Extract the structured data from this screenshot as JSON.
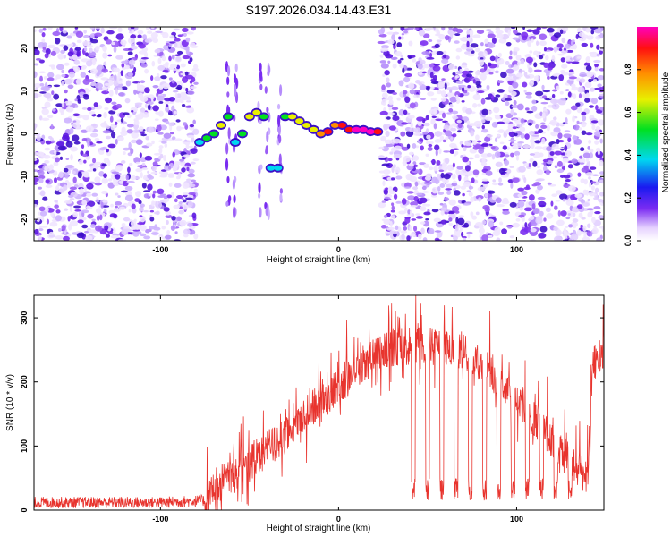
{
  "title": "S197.2026.034.14.43.E31",
  "chart_data": [
    {
      "type": "heatmap",
      "xlabel": "Height of straight line (km)",
      "ylabel": "Frequency (Hz)",
      "xlim": [
        -171,
        149
      ],
      "ylim": [
        -25,
        25
      ],
      "xticks": [
        -100,
        0,
        100
      ],
      "yticks": [
        20,
        10,
        0,
        -10,
        -20
      ],
      "colorbar": {
        "label": "Normalized spectral amplitude",
        "range": [
          0,
          1
        ],
        "ticks": [
          "0.0",
          "0.2",
          "0.4",
          "0.6",
          "0.8"
        ]
      },
      "noise_regions_km": [
        [
          -171,
          -80
        ],
        [
          24,
          149
        ]
      ],
      "empty_region_km": [
        -28,
        24
      ],
      "signal_ridge": {
        "x": [
          -78,
          -74,
          -70,
          -66,
          -62,
          -58,
          -54,
          -50,
          -46,
          -42,
          -38,
          -34,
          -30,
          -26,
          -22,
          -18,
          -14,
          -10,
          -6,
          -2,
          2,
          6,
          10,
          14,
          18,
          22
        ],
        "y": [
          -2,
          -1,
          0,
          2,
          4,
          -2,
          0,
          4,
          5,
          4,
          -8,
          -8,
          4,
          4,
          3,
          2,
          1,
          0,
          0.5,
          2,
          2,
          1,
          1,
          1,
          0.5,
          0.5
        ],
        "amplitude": [
          0.35,
          0.4,
          0.5,
          0.55,
          0.5,
          0.3,
          0.45,
          0.55,
          0.6,
          0.5,
          0.35,
          0.35,
          0.5,
          0.55,
          0.55,
          0.6,
          0.65,
          0.75,
          0.8,
          0.75,
          0.85,
          0.9,
          0.95,
          0.95,
          0.95,
          0.9
        ]
      }
    },
    {
      "type": "line",
      "xlabel": "Height of straight line (km)",
      "ylabel": "SNR (10 * v/v)",
      "xlim": [
        -171,
        149
      ],
      "ylim": [
        0,
        335
      ],
      "xticks": [
        -100,
        0,
        100
      ],
      "yticks": [
        0,
        100,
        200,
        300
      ],
      "color": "#e8342e",
      "envelope": {
        "x": [
          -171,
          -100,
          -75,
          -70,
          -60,
          -50,
          -40,
          -30,
          -20,
          -10,
          0,
          10,
          20,
          30,
          40,
          50,
          60,
          70,
          80,
          90,
          100,
          110,
          120,
          130,
          140,
          143,
          149
        ],
        "y": [
          12,
          12,
          15,
          40,
          60,
          80,
          100,
          120,
          150,
          175,
          200,
          225,
          245,
          260,
          262,
          262,
          258,
          255,
          240,
          210,
          180,
          150,
          110,
          80,
          60,
          240,
          250
        ]
      },
      "dropouts_km": [
        42,
        50,
        58,
        66,
        74,
        82,
        90,
        98,
        106,
        114,
        122,
        130
      ]
    }
  ]
}
